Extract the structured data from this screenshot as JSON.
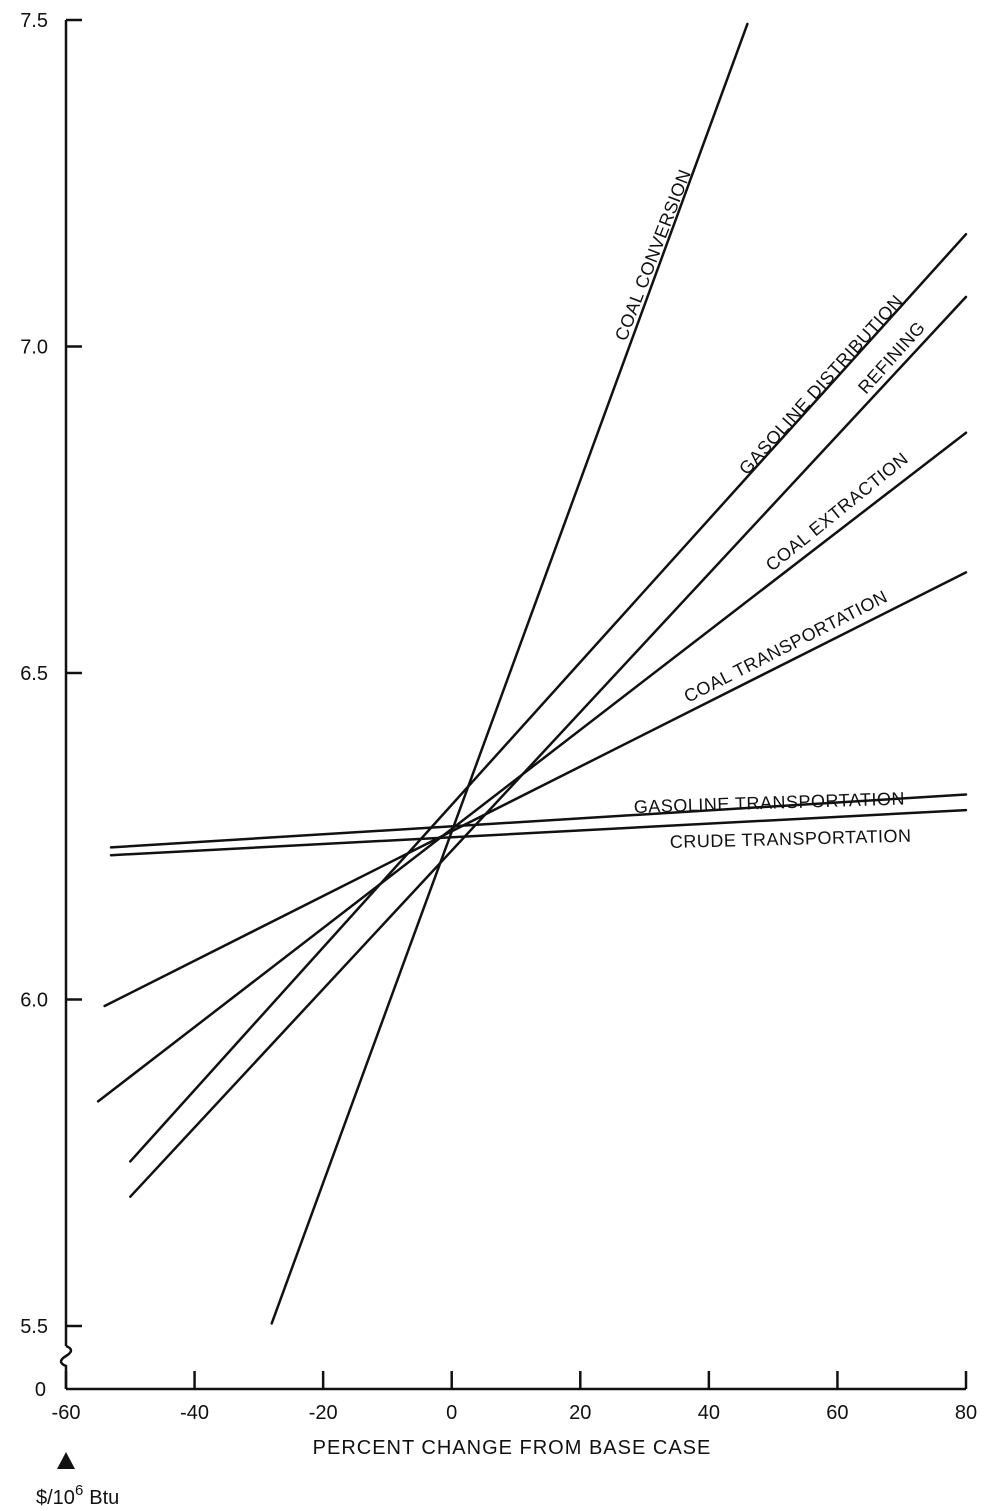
{
  "chart_data": {
    "type": "line",
    "title": "",
    "xlabel": "PERCENT CHANGE FROM BASE CASE",
    "ylabel": "$/10^6 Btu",
    "y_unit": {
      "prefix": "$/10",
      "exponent": "6",
      "suffix": "Btu"
    },
    "xlim": [
      -60,
      80
    ],
    "ylim": [
      5.5,
      7.5
    ],
    "y_axis_break": true,
    "grid": false,
    "legend": "none (lines labeled directly)",
    "x_ticks": [
      -60,
      -40,
      -20,
      0,
      20,
      40,
      60,
      80
    ],
    "x_tick_labels": [
      "-60",
      "-40",
      "-20",
      "0",
      "20",
      "40",
      "60",
      "80"
    ],
    "y_ticks": [
      5.5,
      6.0,
      6.5,
      7.0,
      7.5
    ],
    "y_tick_labels": [
      "5.5",
      "6.0",
      "6.5",
      "7.0",
      "7.5"
    ],
    "y_zero_label": "0",
    "series": [
      {
        "name": "COAL CONVERSION",
        "x": [
          -28,
          46
        ],
        "y": [
          5.504,
          7.494
        ]
      },
      {
        "name": "GASOLINE DISTRIBUTION",
        "x": [
          -50,
          80
        ],
        "y": [
          5.752,
          7.172
        ]
      },
      {
        "name": "REFINING",
        "x": [
          -50,
          80
        ],
        "y": [
          5.698,
          7.076
        ]
      },
      {
        "name": "COAL EXTRACTION",
        "x": [
          -55,
          80
        ],
        "y": [
          5.844,
          6.868
        ]
      },
      {
        "name": "COAL TRANSPORTATION",
        "x": [
          -54,
          80
        ],
        "y": [
          5.99,
          6.654
        ]
      },
      {
        "name": "GASOLINE TRANSPORTATION",
        "x": [
          -53,
          80
        ],
        "y": [
          6.233,
          6.314
        ]
      },
      {
        "name": "CRUDE TRANSPORTATION",
        "x": [
          -53,
          80
        ],
        "y": [
          6.221,
          6.29
        ]
      }
    ]
  }
}
